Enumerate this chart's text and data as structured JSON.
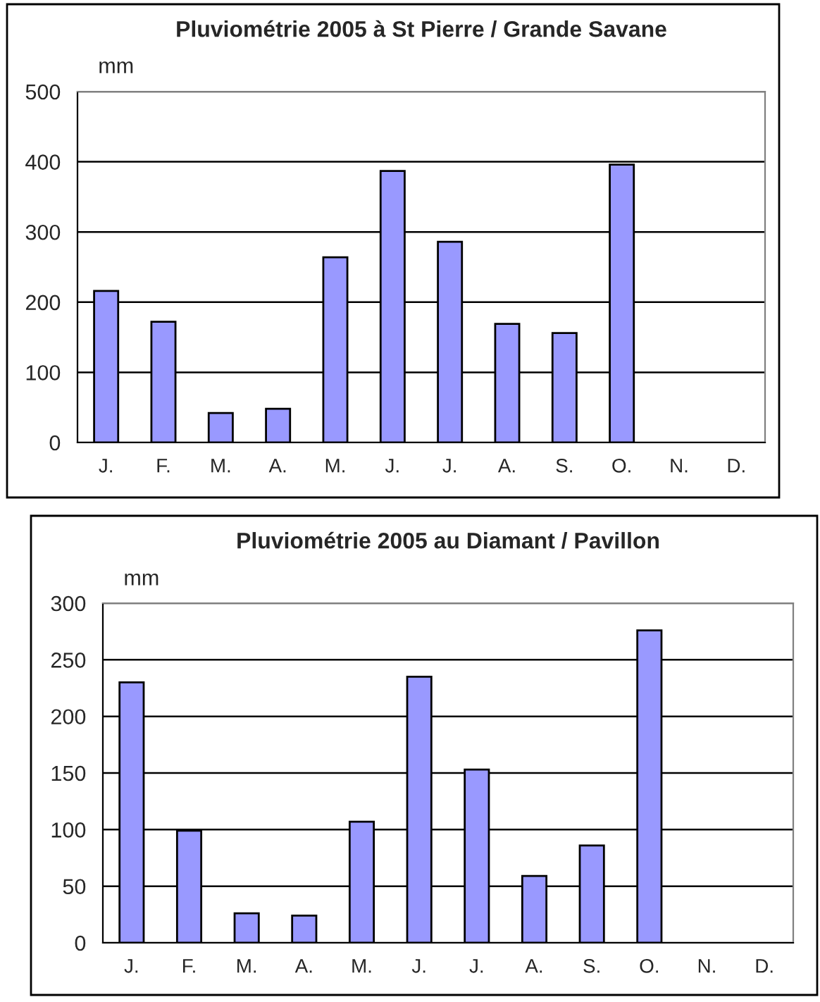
{
  "chart_data": [
    {
      "type": "bar",
      "title": "Pluviométrie 2005 à St Pierre / Grande Savane",
      "ylabel": "mm",
      "categories": [
        "J.",
        "F.",
        "M.",
        "A.",
        "M.",
        "J.",
        "J.",
        "A.",
        "S.",
        "O.",
        "N.",
        "D."
      ],
      "series": [
        {
          "color": "#9999ff",
          "values": [
            216,
            172,
            42,
            48,
            264,
            387,
            286,
            169,
            156,
            396,
            null,
            null
          ]
        }
      ],
      "ylim": [
        0,
        500
      ],
      "yticks": [
        0,
        100,
        200,
        300,
        400,
        500
      ],
      "grid": "y",
      "legend": false
    },
    {
      "type": "bar",
      "title": "Pluviométrie 2005 au Diamant / Pavillon",
      "ylabel": "mm",
      "categories": [
        "J.",
        "F.",
        "M.",
        "A.",
        "M.",
        "J.",
        "J.",
        "A.",
        "S.",
        "O.",
        "N.",
        "D."
      ],
      "series": [
        {
          "color": "#9999ff",
          "values": [
            230,
            99,
            26,
            24,
            107,
            235,
            153,
            59,
            86,
            276,
            null,
            null
          ]
        }
      ],
      "ylim": [
        0,
        300
      ],
      "yticks": [
        0,
        50,
        100,
        150,
        200,
        250,
        300
      ],
      "grid": "y",
      "legend": false
    }
  ]
}
